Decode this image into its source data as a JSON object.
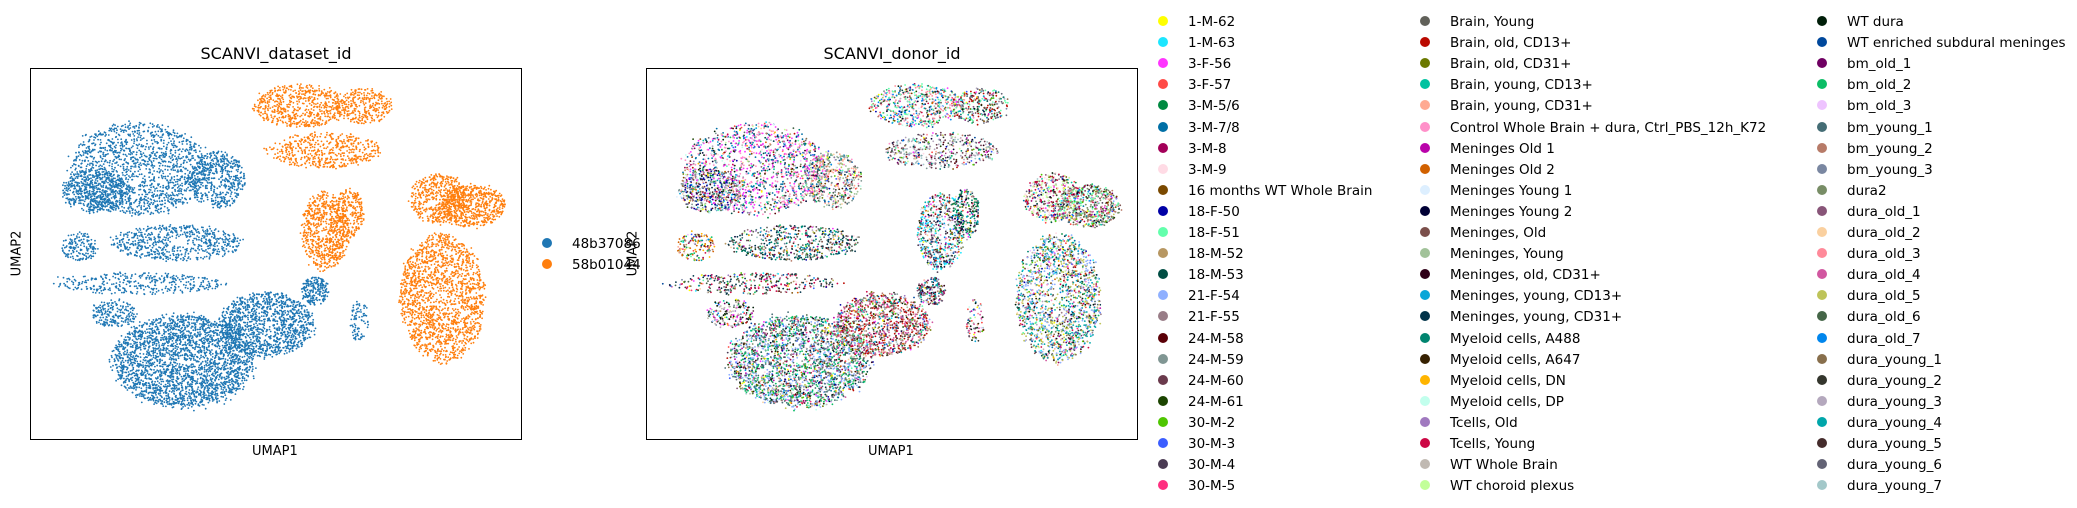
{
  "chart_data": [
    {
      "type": "scatter",
      "title": "SCANVI_dataset_id",
      "xlabel": "UMAP1",
      "ylabel": "UMAP2",
      "grid": false,
      "ticks": false,
      "legend_placement": "right",
      "series": [
        {
          "name": "48b37086",
          "color": "#1f77b4",
          "clusters": [
            {
              "cx": 0.22,
              "cy": 0.27,
              "rx": 0.15,
              "ry": 0.13,
              "n": 1500
            },
            {
              "cx": 0.13,
              "cy": 0.33,
              "rx": 0.07,
              "ry": 0.06,
              "n": 500
            },
            {
              "cx": 0.38,
              "cy": 0.3,
              "rx": 0.06,
              "ry": 0.08,
              "n": 500
            },
            {
              "cx": 0.3,
              "cy": 0.47,
              "rx": 0.14,
              "ry": 0.05,
              "n": 600
            },
            {
              "cx": 0.1,
              "cy": 0.48,
              "rx": 0.04,
              "ry": 0.04,
              "n": 150
            },
            {
              "cx": 0.22,
              "cy": 0.58,
              "rx": 0.18,
              "ry": 0.03,
              "n": 350
            },
            {
              "cx": 0.17,
              "cy": 0.66,
              "rx": 0.05,
              "ry": 0.04,
              "n": 200
            },
            {
              "cx": 0.31,
              "cy": 0.79,
              "rx": 0.15,
              "ry": 0.13,
              "n": 2600
            },
            {
              "cx": 0.48,
              "cy": 0.69,
              "rx": 0.1,
              "ry": 0.09,
              "n": 1200
            },
            {
              "cx": 0.58,
              "cy": 0.6,
              "rx": 0.03,
              "ry": 0.04,
              "n": 200
            },
            {
              "cx": 0.67,
              "cy": 0.68,
              "rx": 0.02,
              "ry": 0.06,
              "n": 80
            }
          ]
        },
        {
          "name": "58b01044",
          "color": "#ff7f0e",
          "clusters": [
            {
              "cx": 0.55,
              "cy": 0.1,
              "rx": 0.1,
              "ry": 0.06,
              "n": 600
            },
            {
              "cx": 0.6,
              "cy": 0.22,
              "rx": 0.12,
              "ry": 0.05,
              "n": 500
            },
            {
              "cx": 0.68,
              "cy": 0.1,
              "rx": 0.06,
              "ry": 0.05,
              "n": 300
            },
            {
              "cx": 0.6,
              "cy": 0.44,
              "rx": 0.05,
              "ry": 0.11,
              "n": 700
            },
            {
              "cx": 0.65,
              "cy": 0.39,
              "rx": 0.03,
              "ry": 0.07,
              "n": 250
            },
            {
              "cx": 0.83,
              "cy": 0.35,
              "rx": 0.06,
              "ry": 0.07,
              "n": 500
            },
            {
              "cx": 0.9,
              "cy": 0.37,
              "rx": 0.07,
              "ry": 0.06,
              "n": 600
            },
            {
              "cx": 0.84,
              "cy": 0.62,
              "rx": 0.09,
              "ry": 0.18,
              "n": 1700
            }
          ]
        }
      ]
    },
    {
      "type": "scatter",
      "title": "SCANVI_donor_id",
      "xlabel": "UMAP1",
      "ylabel": "UMAP2",
      "grid": false,
      "ticks": false,
      "legend_placement": "right",
      "series": [
        {
          "name": "1-M-62",
          "color": "#ffff00"
        },
        {
          "name": "1-M-63",
          "color": "#1ce6ff"
        },
        {
          "name": "3-F-56",
          "color": "#ff34ff"
        },
        {
          "name": "3-F-57",
          "color": "#ff4a46"
        },
        {
          "name": "3-M-5/6",
          "color": "#008941"
        },
        {
          "name": "3-M-7/8",
          "color": "#006fa6"
        },
        {
          "name": "3-M-8",
          "color": "#a30059"
        },
        {
          "name": "3-M-9",
          "color": "#ffdbe5"
        },
        {
          "name": "16 months WT Whole Brain",
          "color": "#7a4900"
        },
        {
          "name": "18-F-50",
          "color": "#0000a6"
        },
        {
          "name": "18-F-51",
          "color": "#63ffac"
        },
        {
          "name": "18-M-52",
          "color": "#b79762"
        },
        {
          "name": "18-M-53",
          "color": "#004d43"
        },
        {
          "name": "21-F-54",
          "color": "#8fb0ff"
        },
        {
          "name": "21-F-55",
          "color": "#997d87"
        },
        {
          "name": "24-M-58",
          "color": "#5a0007"
        },
        {
          "name": "24-M-59",
          "color": "#809693"
        },
        {
          "name": "24-M-60",
          "color": "#6a3a4c"
        },
        {
          "name": "24-M-61",
          "color": "#1b4400"
        },
        {
          "name": "30-M-2",
          "color": "#4fc601"
        },
        {
          "name": "30-M-3",
          "color": "#3b5dff"
        },
        {
          "name": "30-M-4",
          "color": "#4a3b53"
        },
        {
          "name": "30-M-5",
          "color": "#ff2f80"
        },
        {
          "name": "Brain, Young",
          "color": "#61615a"
        },
        {
          "name": "Brain, old, CD13+",
          "color": "#ba0900"
        },
        {
          "name": "Brain, old, CD31+",
          "color": "#6b7900"
        },
        {
          "name": "Brain, young, CD13+",
          "color": "#00c2a0"
        },
        {
          "name": "Brain, young, CD31+",
          "color": "#ffaa92"
        },
        {
          "name": "Control Whole Brain + dura, Ctrl_PBS_12h_K72",
          "color": "#ff90c9"
        },
        {
          "name": "Meninges Old 1",
          "color": "#b903aa"
        },
        {
          "name": "Meninges Old 2",
          "color": "#d16100"
        },
        {
          "name": "Meninges Young 1",
          "color": "#ddefff"
        },
        {
          "name": "Meninges Young 2",
          "color": "#000035"
        },
        {
          "name": "Meninges, Old",
          "color": "#7b4f4b"
        },
        {
          "name": "Meninges, Young",
          "color": "#a1c299"
        },
        {
          "name": "Meninges, old, CD31+",
          "color": "#300018"
        },
        {
          "name": "Meninges, young, CD13+",
          "color": "#0aa6d8"
        },
        {
          "name": "Meninges, young, CD31+",
          "color": "#013349"
        },
        {
          "name": "Myeloid cells, A488",
          "color": "#00846f"
        },
        {
          "name": "Myeloid cells, A647",
          "color": "#372101"
        },
        {
          "name": "Myeloid cells, DN",
          "color": "#ffb500"
        },
        {
          "name": "Myeloid cells, DP",
          "color": "#c2ffed"
        },
        {
          "name": "Tcells, Old",
          "color": "#a079bf"
        },
        {
          "name": "Tcells, Young",
          "color": "#cc0744"
        },
        {
          "name": "WT Whole Brain",
          "color": "#c0b9b2"
        },
        {
          "name": "WT choroid plexus",
          "color": "#c2ff99"
        },
        {
          "name": "WT dura",
          "color": "#001e09"
        },
        {
          "name": "WT enriched subdural meninges",
          "color": "#00489c"
        },
        {
          "name": "bm_old_1",
          "color": "#6f0062"
        },
        {
          "name": "bm_old_2",
          "color": "#0cbd66"
        },
        {
          "name": "bm_old_3",
          "color": "#eec3ff"
        },
        {
          "name": "bm_young_1",
          "color": "#456d75"
        },
        {
          "name": "bm_young_2",
          "color": "#b77b68"
        },
        {
          "name": "bm_young_3",
          "color": "#7a87a1"
        },
        {
          "name": "dura2",
          "color": "#788d66"
        },
        {
          "name": "dura_old_1",
          "color": "#885578"
        },
        {
          "name": "dura_old_2",
          "color": "#fad09f"
        },
        {
          "name": "dura_old_3",
          "color": "#ff8a9a"
        },
        {
          "name": "dura_old_4",
          "color": "#d157a0"
        },
        {
          "name": "dura_old_5",
          "color": "#bec459"
        },
        {
          "name": "dura_old_6",
          "color": "#456648"
        },
        {
          "name": "dura_old_7",
          "color": "#0086ed"
        },
        {
          "name": "dura_young_1",
          "color": "#886f4c"
        },
        {
          "name": "dura_young_2",
          "color": "#34362d"
        },
        {
          "name": "dura_young_3",
          "color": "#b4a8bd"
        },
        {
          "name": "dura_young_4",
          "color": "#00a6aa"
        },
        {
          "name": "dura_young_5",
          "color": "#452c2c"
        },
        {
          "name": "dura_young_6",
          "color": "#636375"
        },
        {
          "name": "dura_young_7",
          "color": "#a3c8c9"
        }
      ]
    }
  ]
}
